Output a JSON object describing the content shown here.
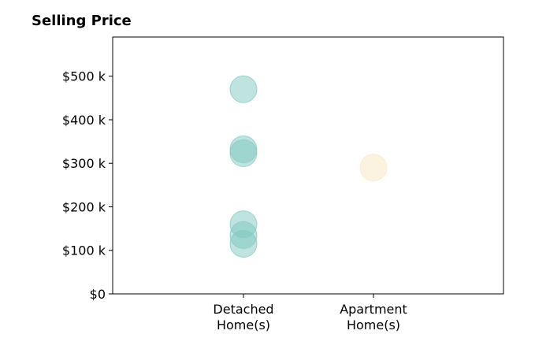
{
  "chart_data": {
    "type": "scatter",
    "title": "Selling Price",
    "categories": [
      "Detached\nHome(s)",
      "Apartment\nHome(s)"
    ],
    "ylim": [
      0,
      590000
    ],
    "yticks": [
      0,
      100000,
      200000,
      300000,
      400000,
      500000
    ],
    "ytick_labels": [
      "$0",
      "$100 k",
      "$200 k",
      "$300 k",
      "$400 k",
      "$500 k"
    ],
    "series": [
      {
        "category": "Detached\nHome(s)",
        "color": "#7fc8bf",
        "values": [
          470000,
          332000,
          323000,
          160000,
          135000,
          115000
        ]
      },
      {
        "category": "Apartment\nHome(s)",
        "color": "#f8e8c0",
        "values": [
          290000
        ]
      }
    ],
    "grid": false
  }
}
